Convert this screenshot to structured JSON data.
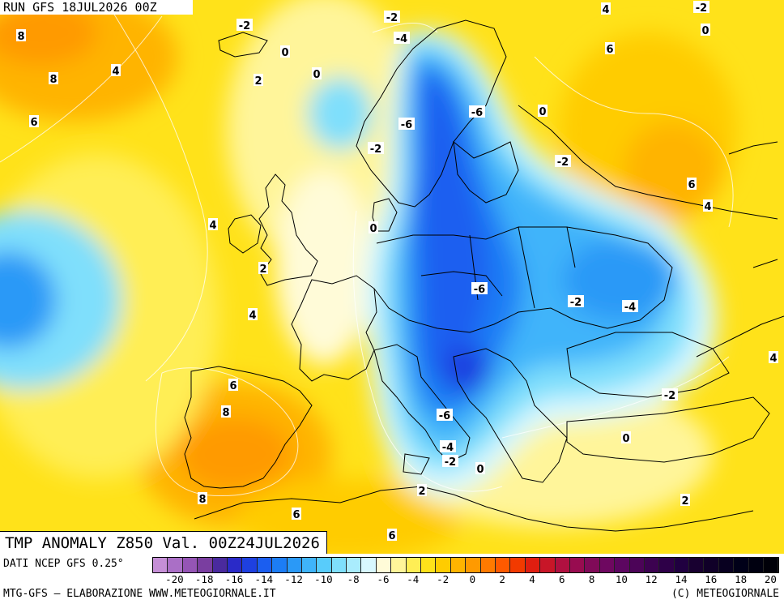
{
  "header": {
    "run_label": "RUN GFS 18JUL2026 00Z"
  },
  "title_bar": {
    "title": "TMP ANOMALY Z850 Val. 00Z24JUL2026"
  },
  "footer": {
    "source": "DATI NCEP GFS 0.25°",
    "credit_left": "MTG-GFS – ELABORAZIONE WWW.METEOGIORNALE.IT",
    "credit_right": "(C) METEOGIORNALE"
  },
  "legend": {
    "colors": [
      "#c58fd6",
      "#aa6fc6",
      "#9555b5",
      "#7a3ea0",
      "#4a2a9e",
      "#2a2ac8",
      "#1e40e0",
      "#1b5ef0",
      "#1c7df5",
      "#2a99f7",
      "#3fb4fa",
      "#58ccfb",
      "#7fdffc",
      "#a9ecfd",
      "#d8f8ff",
      "#fffbd8",
      "#fff59a",
      "#ffee55",
      "#ffe21a",
      "#ffcc00",
      "#ffb400",
      "#ff9a00",
      "#ff7a00",
      "#ff5a00",
      "#f23a00",
      "#e01e10",
      "#c81628",
      "#b01040",
      "#980c50",
      "#800a58",
      "#6e0860",
      "#5c0660",
      "#4c0458",
      "#3c0250",
      "#2e0048",
      "#200040",
      "#180030",
      "#100028",
      "#080020",
      "#000018",
      "#000010",
      "#000008"
    ],
    "labels": [
      "-20",
      "-18",
      "-16",
      "-14",
      "-12",
      "-10",
      "-8",
      "-6",
      "-4",
      "-2",
      "0",
      "2",
      "4",
      "6",
      "8",
      "10",
      "12",
      "14",
      "16",
      "18",
      "20"
    ]
  },
  "map": {
    "contour_labels": [
      {
        "text": "8"
      },
      {
        "text": "8"
      },
      {
        "text": "6"
      },
      {
        "text": "4"
      },
      {
        "text": "-2"
      },
      {
        "text": "2"
      },
      {
        "text": "0"
      },
      {
        "text": "0"
      },
      {
        "text": "-2"
      },
      {
        "text": "-4"
      },
      {
        "text": "4"
      },
      {
        "text": "-2"
      },
      {
        "text": "0"
      },
      {
        "text": "6"
      },
      {
        "text": "-6"
      },
      {
        "text": "-6"
      },
      {
        "text": "0"
      },
      {
        "text": "-2"
      },
      {
        "text": "-2"
      },
      {
        "text": "6"
      },
      {
        "text": "4"
      },
      {
        "text": "4"
      },
      {
        "text": "0"
      },
      {
        "text": "2"
      },
      {
        "text": "-6"
      },
      {
        "text": "-2"
      },
      {
        "text": "-4"
      },
      {
        "text": "4"
      },
      {
        "text": "4"
      },
      {
        "text": "6"
      },
      {
        "text": "8"
      },
      {
        "text": "-6"
      },
      {
        "text": "-2"
      },
      {
        "text": "-4"
      },
      {
        "text": "-2"
      },
      {
        "text": "0"
      },
      {
        "text": "0"
      },
      {
        "text": "2"
      },
      {
        "text": "8"
      },
      {
        "text": "6"
      },
      {
        "text": "2"
      },
      {
        "text": "6"
      }
    ]
  }
}
